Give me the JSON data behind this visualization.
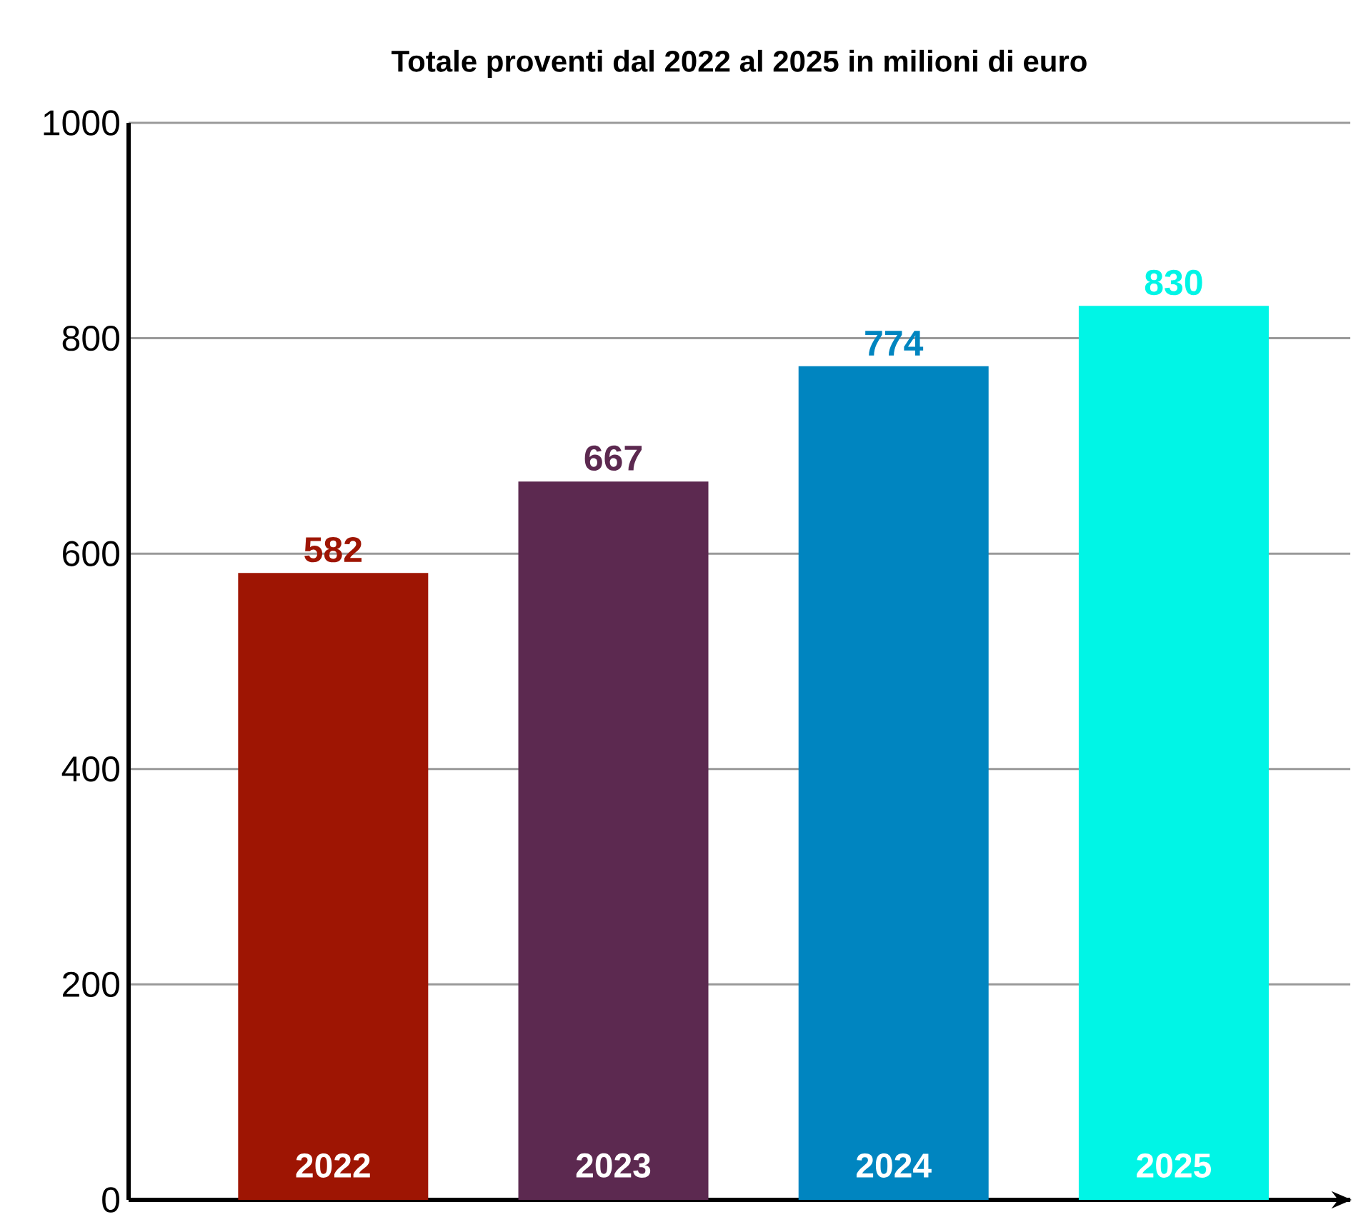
{
  "chart_data": {
    "type": "bar",
    "title": "Totale proventi dal 2022 al 2025 in milioni di euro",
    "categories": [
      "2022",
      "2023",
      "2024",
      "2025"
    ],
    "values": [
      582,
      667,
      774,
      830
    ],
    "colors": [
      "#9e1503",
      "#5c2950",
      "#0085c0",
      "#00f5e6"
    ],
    "ylim": [
      0,
      1000
    ],
    "yticks": [
      0,
      200,
      400,
      600,
      800,
      1000
    ],
    "grid": "y",
    "data_labels": true
  }
}
